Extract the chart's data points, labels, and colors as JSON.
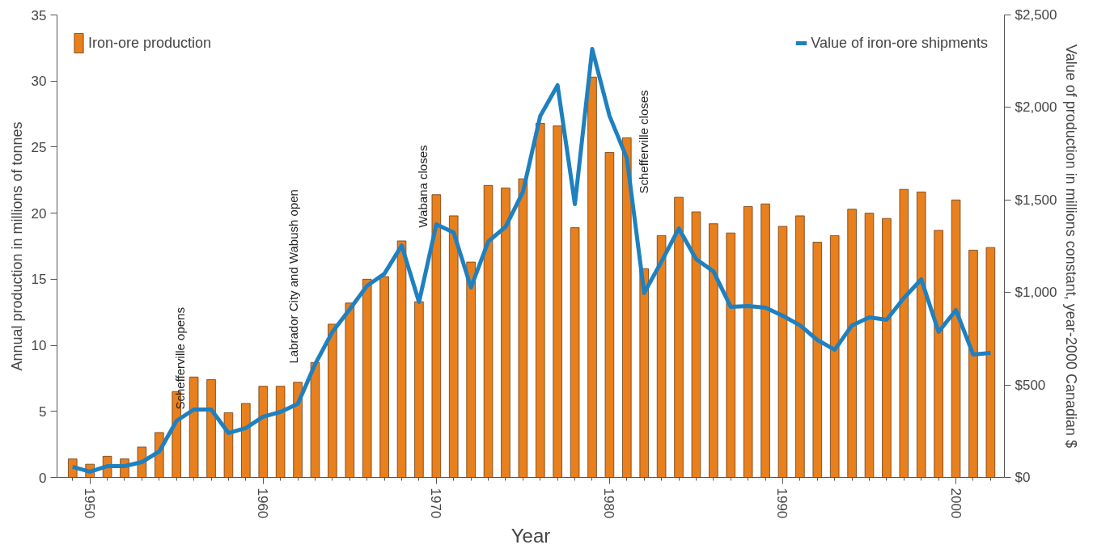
{
  "chart_data": {
    "type": "bar",
    "xlabel": "Year",
    "ylabel": "Annual production in millions of tonnes",
    "y2label": "Value of production in millions constant, year-2000 Canadian $",
    "x": [
      1949,
      1950,
      1951,
      1952,
      1953,
      1954,
      1955,
      1956,
      1957,
      1958,
      1959,
      1960,
      1961,
      1962,
      1963,
      1964,
      1965,
      1966,
      1967,
      1968,
      1969,
      1970,
      1971,
      1972,
      1973,
      1974,
      1975,
      1976,
      1977,
      1978,
      1979,
      1980,
      1981,
      1982,
      1983,
      1984,
      1985,
      1986,
      1987,
      1988,
      1989,
      1990,
      1991,
      1992,
      1993,
      1994,
      1995,
      1996,
      1997,
      1998,
      1999,
      2000,
      2001,
      2002
    ],
    "series": [
      {
        "name": "Iron-ore production",
        "color": "#e8801e",
        "values": [
          1.4,
          1.0,
          1.6,
          1.4,
          2.3,
          3.4,
          6.5,
          7.6,
          7.4,
          4.9,
          5.6,
          6.9,
          6.9,
          7.2,
          8.7,
          11.6,
          13.2,
          15.0,
          15.2,
          17.9,
          13.3,
          21.4,
          19.8,
          16.3,
          22.1,
          21.9,
          22.6,
          26.8,
          26.6,
          18.9,
          30.3,
          24.6,
          25.7,
          15.8,
          18.3,
          21.2,
          20.1,
          19.2,
          18.5,
          20.5,
          20.7,
          19.0,
          19.8,
          17.8,
          18.3,
          20.3,
          20.0,
          19.6,
          21.8,
          21.6,
          18.7,
          21.0,
          17.2,
          17.4
        ]
      },
      {
        "name": "Value of iron-ore shipments",
        "type": "line",
        "axis": "y2",
        "color": "#1f80c0",
        "values": [
          57,
          31,
          61,
          61,
          83,
          140,
          306,
          367,
          367,
          240,
          267,
          328,
          354,
          398,
          612,
          787,
          909,
          1036,
          1101,
          1254,
          948,
          1368,
          1324,
          1027,
          1276,
          1355,
          1543,
          1954,
          2120,
          1477,
          2316,
          1954,
          1726,
          997,
          1167,
          1346,
          1180,
          1114,
          922,
          927,
          918,
          874,
          822,
          743,
          690,
          822,
          865,
          852,
          970,
          1071,
          787,
          905,
          664,
          673
        ]
      }
    ],
    "xlim": [
      1948.1,
      2002.8
    ],
    "xticks": [
      1950,
      1960,
      1970,
      1980,
      1990,
      2000
    ],
    "ylim": [
      0,
      35
    ],
    "yticks": [
      0,
      5,
      10,
      15,
      20,
      25,
      30,
      35
    ],
    "y2lim": [
      0,
      2500
    ],
    "y2ticks": [
      {
        "value": 0,
        "label": "$0"
      },
      {
        "value": 500,
        "label": "$500"
      },
      {
        "value": 1000,
        "label": "$1,000"
      },
      {
        "value": 1500,
        "label": "$1,500"
      },
      {
        "value": 2000,
        "label": "$2,000"
      },
      {
        "value": 2500,
        "label": "$2,500"
      }
    ],
    "annotations": [
      "Schefferville opens",
      "Labrador City and Wabush open",
      "Wabana closes",
      "Schefferville closes"
    ],
    "grid": false,
    "legend": "top",
    "line_style": "solid",
    "marker": "none"
  }
}
